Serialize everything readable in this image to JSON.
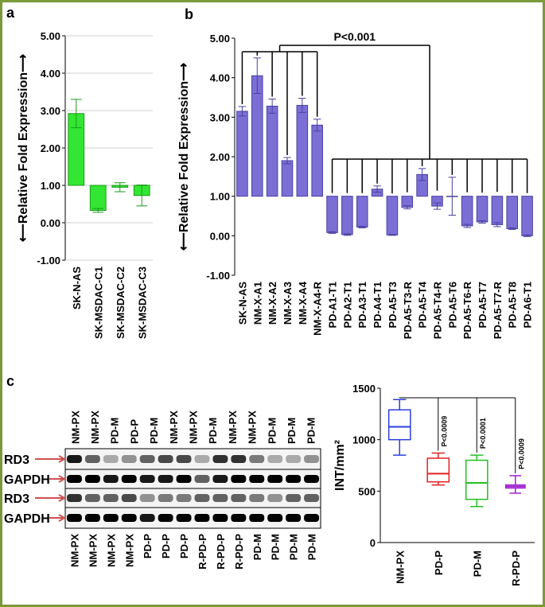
{
  "panel_labels": [
    "a",
    "b",
    "c"
  ],
  "chart_data": [
    {
      "type": "floating-bar",
      "y_label": "⟵Relative Fold Expression⟶",
      "categories": [
        "SK-N-AS",
        "SK-MSDAC-C1",
        "SK-MSDAC-C2",
        "SK-MSDAC-C3"
      ],
      "values": [
        2.92,
        0.33,
        0.95,
        0.73
      ],
      "errors": [
        0.38,
        0.05,
        0.12,
        0.28
      ],
      "baseline": 1,
      "color": "#33e633",
      "ylim": [
        -1,
        5
      ],
      "yticks": [
        {
          "value": -1,
          "label": "-1.00"
        },
        {
          "value": 0,
          "label": "0.00"
        },
        {
          "value": 1,
          "label": "1.00"
        },
        {
          "value": 2,
          "label": "2.00"
        },
        {
          "value": 3,
          "label": "3.00"
        },
        {
          "value": 4,
          "label": "4.00"
        },
        {
          "value": 5,
          "label": "5.00"
        }
      ],
      "grid": true
    },
    {
      "type": "floating-bar",
      "y_label": "⟵Relative Fold Expression⟶",
      "annotation": "P<0.001",
      "categories": [
        "SK-N-AS",
        "NM-X-A1",
        "NM-X-A2",
        "NM-X-A3",
        "NM-X-A4",
        "NM-X-A4-R",
        "PD-A1-T1",
        "PD-A2-T1",
        "PD-A3-T1",
        "PD-A4-T1",
        "PD-A5-T3",
        "PD-A5-T3-R",
        "PD-A5-T4",
        "PD-A5-T4-R",
        "PD-A5-T6",
        "PD-A5-T6-R",
        "PD-A5-T7",
        "PD-A5-T7-R",
        "PD-A5-T8",
        "PD-A6-T1"
      ],
      "values": [
        3.15,
        4.05,
        3.28,
        1.9,
        3.3,
        2.8,
        0.08,
        0.03,
        0.22,
        1.18,
        0.02,
        0.72,
        1.55,
        0.75,
        1.0,
        0.25,
        0.35,
        0.28,
        0.18,
        0.0
      ],
      "errors": [
        0.12,
        0.45,
        0.18,
        0.08,
        0.18,
        0.15,
        0.02,
        0.02,
        0.02,
        0.08,
        0.01,
        0.04,
        0.15,
        0.08,
        0.48,
        0.04,
        0.03,
        0.05,
        0.02,
        0.02
      ],
      "baseline": 1,
      "color": "#7b6fd6",
      "ylim": [
        -1,
        5
      ],
      "yticks": [
        {
          "value": -1,
          "label": "-1.00"
        },
        {
          "value": 0,
          "label": "0.00"
        },
        {
          "value": 1,
          "label": "1.00"
        },
        {
          "value": 2,
          "label": "2.00"
        },
        {
          "value": 3,
          "label": "3.00"
        },
        {
          "value": 4,
          "label": "4.00"
        },
        {
          "value": 5,
          "label": "5.00"
        }
      ],
      "grid": false
    },
    {
      "type": "box",
      "y_label": "INT/mm²",
      "categories": [
        "NM-PX",
        "PD-P",
        "PD-M",
        "R-PD-P"
      ],
      "colors": [
        "#2a3fe0",
        "#e02020",
        "#22c022",
        "#a020d0"
      ],
      "boxes": [
        {
          "min": 850,
          "q1": 1000,
          "median": 1125,
          "q3": 1290,
          "max": 1390
        },
        {
          "min": 560,
          "q1": 590,
          "median": 670,
          "q3": 820,
          "max": 870
        },
        {
          "min": 350,
          "q1": 420,
          "median": 580,
          "q3": 800,
          "max": 850
        },
        {
          "min": 480,
          "q1": 530,
          "median": 545,
          "q3": 560,
          "max": 650
        }
      ],
      "annotations": [
        "P<0.0009",
        "P<0.0001",
        "P<0.0009"
      ],
      "ylim": [
        0,
        1500
      ],
      "yticks": [
        0,
        500,
        1000,
        1500
      ],
      "grid": false
    }
  ],
  "blot": {
    "lane_labels_top": [
      "NM-PX",
      "NM-PX",
      "PD-M",
      "PD-P",
      "PD-M",
      "NM-PX",
      "NM-PX",
      "PD-M",
      "NM-PX",
      "NM-PX",
      "PD-M",
      "PD-M",
      "PD-M"
    ],
    "lane_labels_bottom": [
      "NM-PX",
      "NM-PX",
      "NM-PX",
      "NM-PX",
      "PD-P",
      "PD-P",
      "PD-P",
      "R-PD-P",
      "R-PD-P",
      "R-PD-P",
      "PD-M",
      "PD-M",
      "PD-M",
      "PD-M"
    ],
    "row_labels": [
      "RD3",
      "GAPDH",
      "RD3",
      "GAPDH"
    ]
  }
}
